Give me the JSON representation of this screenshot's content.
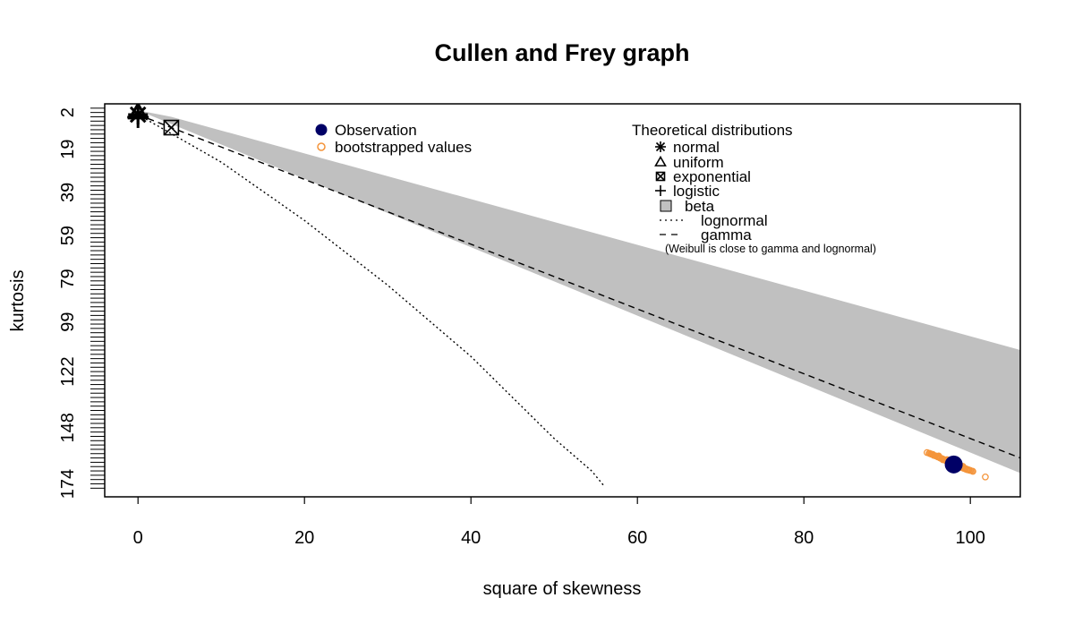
{
  "chart_data": {
    "type": "scatter",
    "title": "Cullen and Frey graph",
    "xlabel": "square of skewness",
    "ylabel": "kurtosis",
    "xlim": [
      -4,
      106
    ],
    "ylim": [
      -2,
      180
    ],
    "y_reversed": true,
    "x_ticks": [
      "0",
      "20",
      "40",
      "60",
      "80",
      "100"
    ],
    "y_ticks": [
      "2",
      "19",
      "39",
      "59",
      "79",
      "99",
      "122",
      "148",
      "174"
    ],
    "observation": {
      "x": 98,
      "y": 165
    },
    "bootstrap": [
      {
        "x": 94.8,
        "y": 159.5
      },
      {
        "x": 95.1,
        "y": 159.9
      },
      {
        "x": 95.3,
        "y": 160.2
      },
      {
        "x": 95.5,
        "y": 160.4
      },
      {
        "x": 95.6,
        "y": 160.8
      },
      {
        "x": 95.8,
        "y": 161.0
      },
      {
        "x": 96.0,
        "y": 161.3
      },
      {
        "x": 96.1,
        "y": 161.5
      },
      {
        "x": 96.3,
        "y": 161.8
      },
      {
        "x": 96.4,
        "y": 162.1
      },
      {
        "x": 96.6,
        "y": 162.3
      },
      {
        "x": 96.8,
        "y": 162.7
      },
      {
        "x": 96.9,
        "y": 162.9
      },
      {
        "x": 97.1,
        "y": 163.3
      },
      {
        "x": 97.3,
        "y": 163.5
      },
      {
        "x": 97.4,
        "y": 163.9
      },
      {
        "x": 97.6,
        "y": 164.1
      },
      {
        "x": 97.8,
        "y": 164.5
      },
      {
        "x": 98.0,
        "y": 164.8
      },
      {
        "x": 98.2,
        "y": 165.1
      },
      {
        "x": 98.4,
        "y": 165.5
      },
      {
        "x": 98.6,
        "y": 165.8
      },
      {
        "x": 98.8,
        "y": 166.1
      },
      {
        "x": 99.0,
        "y": 166.5
      },
      {
        "x": 99.2,
        "y": 166.8
      },
      {
        "x": 99.4,
        "y": 167.1
      },
      {
        "x": 99.6,
        "y": 167.4
      },
      {
        "x": 99.8,
        "y": 167.6
      },
      {
        "x": 100.0,
        "y": 167.8
      },
      {
        "x": 100.3,
        "y": 168.2
      },
      {
        "x": 96.2,
        "y": 161.1
      },
      {
        "x": 96.7,
        "y": 162.8
      },
      {
        "x": 97.2,
        "y": 162.8
      },
      {
        "x": 98.5,
        "y": 166.0
      },
      {
        "x": 99.1,
        "y": 165.9
      },
      {
        "x": 101.8,
        "y": 170.8
      }
    ],
    "distributions": {
      "normal": {
        "x": 0,
        "y": 3
      },
      "uniform": {
        "x": 0,
        "y": 1.8
      },
      "exponential": {
        "x": 4,
        "y": 9
      },
      "logistic": {
        "x": 0,
        "y": 4.2
      },
      "beta_region": [
        [
          0,
          1
        ],
        [
          4,
          4
        ],
        [
          106,
          112
        ],
        [
          106,
          169
        ],
        [
          0,
          1
        ]
      ],
      "gamma_line": [
        [
          0,
          3
        ],
        [
          106,
          162
        ]
      ],
      "lognormal_curve": [
        [
          0,
          3
        ],
        [
          10,
          25
        ],
        [
          20,
          52
        ],
        [
          30,
          82
        ],
        [
          40,
          115
        ],
        [
          50,
          153
        ],
        [
          54.5,
          168
        ],
        [
          56,
          175
        ]
      ]
    },
    "legend_left": {
      "items": [
        {
          "label": "Observation",
          "color": "#000066"
        },
        {
          "label": "bootstrapped values",
          "color": "#f4943a"
        }
      ]
    },
    "legend_right": {
      "title": "Theoretical distributions",
      "items": [
        {
          "symbol": "normal",
          "label": "normal"
        },
        {
          "symbol": "uniform",
          "label": "uniform"
        },
        {
          "symbol": "exponential",
          "label": "exponential"
        },
        {
          "symbol": "logistic",
          "label": "logistic"
        },
        {
          "symbol": "beta",
          "label": "beta"
        },
        {
          "symbol": "lognormal",
          "label": "lognormal"
        },
        {
          "symbol": "gamma",
          "label": "gamma"
        }
      ],
      "note": "(Weibull is close to gamma and lognormal)"
    },
    "colors": {
      "observation": "#000066",
      "bootstrap": "#f4943a",
      "beta_fill": "#c0c0c0"
    }
  }
}
